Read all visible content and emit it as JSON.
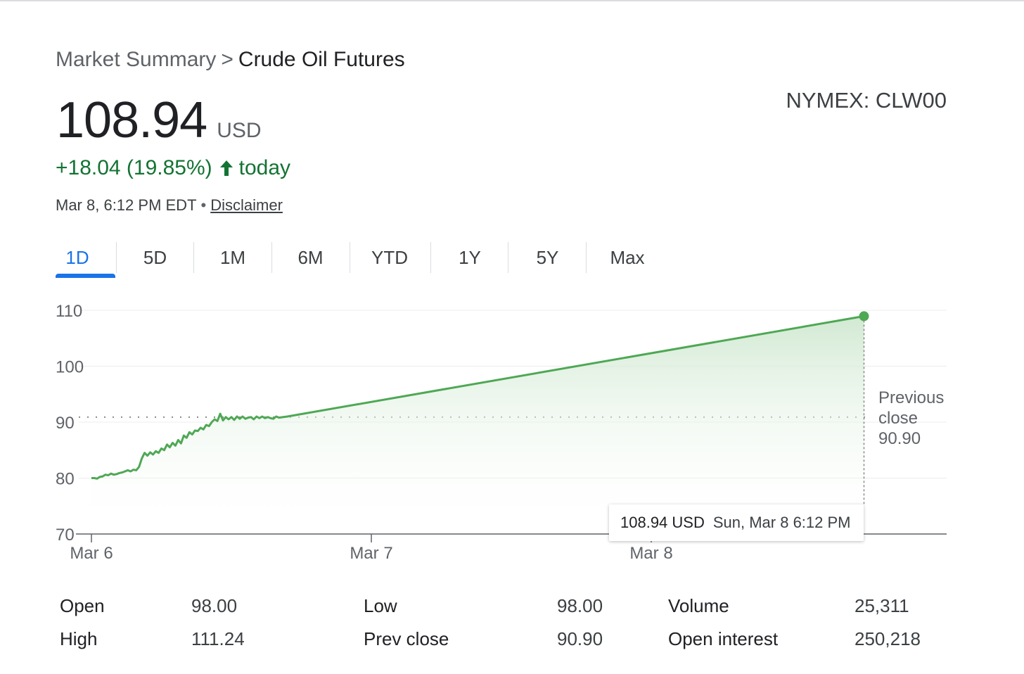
{
  "breadcrumb": {
    "parent": "Market Summary",
    "separator": ">",
    "current": "Crude Oil Futures"
  },
  "quote": {
    "price": "108.94",
    "currency": "USD",
    "exchange": "NYMEX: CLW00",
    "change": "+18.04 (19.85%)",
    "change_icon": "arrow-up-icon",
    "change_suffix": "today",
    "timestamp": "Mar 8, 6:12 PM EDT",
    "separator_dot": "•",
    "disclaimer": "Disclaimer"
  },
  "tabs": [
    {
      "label": "1D",
      "active": true
    },
    {
      "label": "5D",
      "active": false
    },
    {
      "label": "1M",
      "active": false
    },
    {
      "label": "6M",
      "active": false
    },
    {
      "label": "YTD",
      "active": false
    },
    {
      "label": "1Y",
      "active": false
    },
    {
      "label": "5Y",
      "active": false
    },
    {
      "label": "Max",
      "active": false
    }
  ],
  "colors": {
    "accent": "#1a73e8",
    "positive": "#137333",
    "line": "#4ea854",
    "fill_top": "#cfe8d0",
    "muted": "#5f6368"
  },
  "chart_data": {
    "type": "area",
    "yticks": [
      "110",
      "100",
      "90",
      "80",
      "70"
    ],
    "ylim": [
      70,
      110
    ],
    "xticks": [
      "Mar 6",
      "Mar 7",
      "Mar 8"
    ],
    "xlim_days": [
      0,
      3.06
    ],
    "series": [
      {
        "points": [
          [
            0.0,
            80.0
          ],
          [
            0.01,
            80.0
          ],
          [
            0.02,
            79.9
          ],
          [
            0.03,
            80.2
          ],
          [
            0.04,
            80.3
          ],
          [
            0.05,
            80.6
          ],
          [
            0.06,
            80.5
          ],
          [
            0.07,
            80.8
          ],
          [
            0.08,
            80.6
          ],
          [
            0.09,
            80.7
          ],
          [
            0.1,
            80.9
          ],
          [
            0.11,
            81.0
          ],
          [
            0.12,
            81.2
          ],
          [
            0.13,
            81.4
          ],
          [
            0.14,
            81.2
          ],
          [
            0.15,
            81.5
          ],
          [
            0.16,
            81.4
          ],
          [
            0.17,
            82.0
          ],
          [
            0.18,
            83.5
          ],
          [
            0.19,
            84.5
          ],
          [
            0.2,
            84.0
          ],
          [
            0.21,
            84.6
          ],
          [
            0.22,
            84.2
          ],
          [
            0.23,
            84.8
          ],
          [
            0.24,
            84.5
          ],
          [
            0.25,
            85.3
          ],
          [
            0.26,
            85.0
          ],
          [
            0.27,
            86.0
          ],
          [
            0.28,
            85.5
          ],
          [
            0.29,
            86.3
          ],
          [
            0.3,
            85.8
          ],
          [
            0.31,
            86.8
          ],
          [
            0.32,
            86.2
          ],
          [
            0.33,
            87.6
          ],
          [
            0.34,
            87.2
          ],
          [
            0.35,
            88.2
          ],
          [
            0.36,
            87.8
          ],
          [
            0.37,
            88.5
          ],
          [
            0.38,
            88.4
          ],
          [
            0.39,
            89.0
          ],
          [
            0.4,
            88.7
          ],
          [
            0.41,
            89.5
          ],
          [
            0.42,
            89.3
          ],
          [
            0.43,
            90.0
          ],
          [
            0.44,
            90.5
          ],
          [
            0.45,
            90.2
          ],
          [
            0.46,
            91.5
          ],
          [
            0.47,
            90.3
          ],
          [
            0.48,
            90.9
          ],
          [
            0.49,
            90.5
          ],
          [
            0.5,
            90.9
          ],
          [
            0.51,
            90.4
          ],
          [
            0.52,
            91.0
          ],
          [
            0.53,
            90.6
          ],
          [
            0.54,
            91.0
          ],
          [
            0.55,
            90.6
          ],
          [
            0.56,
            90.8
          ],
          [
            0.57,
            90.9
          ],
          [
            0.58,
            90.5
          ],
          [
            0.59,
            91.0
          ],
          [
            0.6,
            90.7
          ],
          [
            0.61,
            91.0
          ],
          [
            0.62,
            90.7
          ],
          [
            0.63,
            90.9
          ],
          [
            0.64,
            90.7
          ],
          [
            0.65,
            90.6
          ],
          [
            0.66,
            91.0
          ],
          [
            0.67,
            90.8
          ],
          [
            0.7,
            91.0
          ],
          [
            2.76,
            108.94
          ]
        ]
      }
    ],
    "reference_line": {
      "label_lines": [
        "Previous",
        "close",
        "90.90"
      ],
      "value": 90.9
    },
    "last_point": {
      "x": 2.76,
      "y": 108.94
    },
    "tooltip": {
      "price": "108.94 USD",
      "date": "Sun, Mar 8 6:12 PM"
    }
  },
  "stats": [
    {
      "label": "Open",
      "value": "98.00"
    },
    {
      "label": "High",
      "value": "111.24"
    },
    {
      "label": "Low",
      "value": "98.00"
    },
    {
      "label": "Prev close",
      "value": "90.90"
    },
    {
      "label": "Volume",
      "value": "25,311"
    },
    {
      "label": "Open interest",
      "value": "250,218"
    }
  ]
}
